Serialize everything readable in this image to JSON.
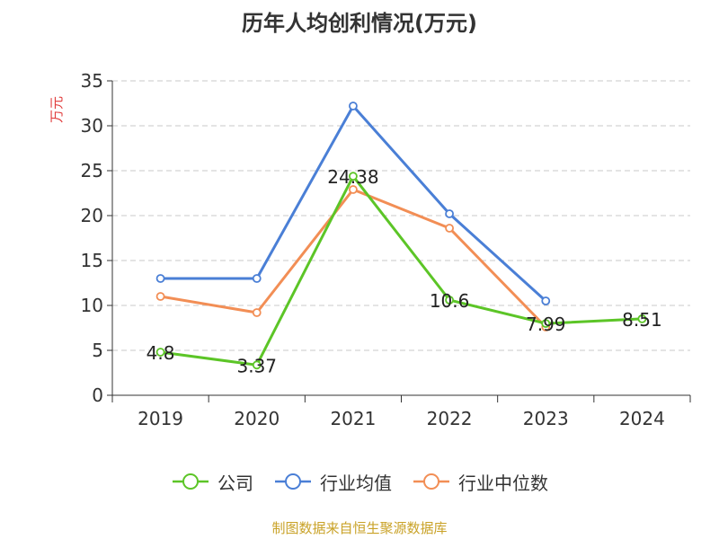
{
  "chart_data": {
    "type": "line",
    "title": "历年人均创利情况(万元)",
    "ylabel": "万元",
    "xlabel": "",
    "categories": [
      "2019",
      "2020",
      "2021",
      "2022",
      "2023",
      "2024"
    ],
    "ylim": [
      0,
      35
    ],
    "yticks": [
      0,
      5,
      10,
      15,
      20,
      25,
      30,
      35
    ],
    "grid": true,
    "legend_position": "bottom",
    "series": [
      {
        "name": "公司",
        "color": "#5cc527",
        "values": [
          4.8,
          3.37,
          24.38,
          10.6,
          7.99,
          8.51
        ],
        "labels": [
          "4.8",
          "3.37",
          "24.38",
          "10.6",
          "7.99",
          "8.51"
        ]
      },
      {
        "name": "行业均值",
        "color": "#4a7fd6",
        "values": [
          13.0,
          13.0,
          32.2,
          20.2,
          10.5,
          null
        ]
      },
      {
        "name": "行业中位数",
        "color": "#f28e55",
        "values": [
          11.0,
          9.2,
          22.9,
          18.6,
          7.6,
          null
        ]
      }
    ]
  },
  "source_note": "制图数据来自恒生聚源数据库"
}
